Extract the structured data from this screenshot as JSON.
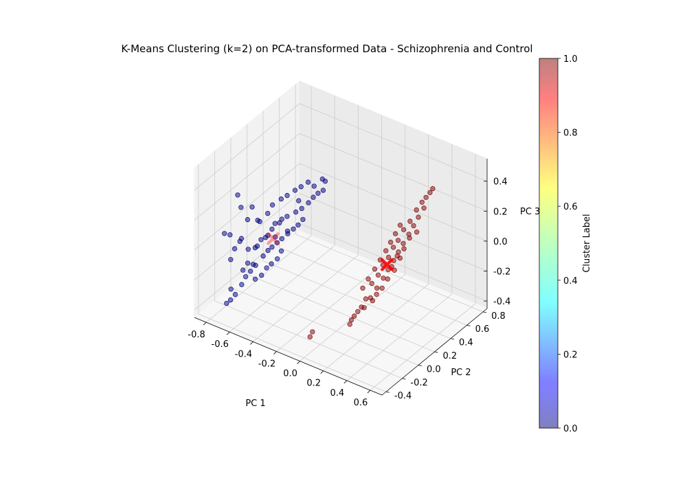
{
  "chart_data": {
    "type": "scatter3d",
    "title": "K-Means Clustering (k=2) on PCA-transformed Data - Schizophrenia and Control",
    "xlabel": "PC 1",
    "ylabel": "PC 2",
    "zlabel": "PC 3",
    "x_ticks": [
      "-0.8",
      "-0.6",
      "-0.4",
      "-0.2",
      "0.0",
      "0.2",
      "0.4",
      "0.6"
    ],
    "y_ticks": [
      "-0.4",
      "-0.2",
      "0.0",
      "0.2",
      "0.4",
      "0.6",
      "0.8"
    ],
    "z_ticks": [
      "-0.4",
      "-0.2",
      "0.0",
      "0.2",
      "0.4"
    ],
    "xlim": [
      -0.9,
      0.7
    ],
    "ylim": [
      -0.45,
      0.85
    ],
    "zlim": [
      -0.45,
      0.55
    ],
    "grid": true,
    "colorbar": {
      "label": "Cluster Label",
      "ticks": [
        "0.0",
        "0.2",
        "0.4",
        "0.6",
        "0.8",
        "1.0"
      ],
      "range": [
        0,
        1
      ],
      "colormap": "jet",
      "alpha": 0.5
    },
    "clusters": [
      {
        "label": 0,
        "color": "#00007f",
        "points": [
          [
            -0.6,
            -0.35,
            0.42
          ],
          [
            -0.62,
            -0.28,
            0.3
          ],
          [
            -0.55,
            -0.3,
            0.25
          ],
          [
            -0.58,
            -0.2,
            0.28
          ],
          [
            -0.7,
            -0.3,
            0.1
          ],
          [
            -0.65,
            -0.25,
            0.05
          ],
          [
            -0.6,
            -0.22,
            0.0
          ],
          [
            -0.55,
            -0.18,
            0.02
          ],
          [
            -0.5,
            -0.15,
            0.08
          ],
          [
            -0.48,
            -0.1,
            0.12
          ],
          [
            -0.45,
            -0.05,
            0.15
          ],
          [
            -0.42,
            0.0,
            0.18
          ],
          [
            -0.38,
            0.05,
            0.2
          ],
          [
            -0.35,
            0.08,
            0.22
          ],
          [
            -0.32,
            0.12,
            0.25
          ],
          [
            -0.3,
            0.15,
            0.28
          ],
          [
            -0.28,
            0.18,
            0.3
          ],
          [
            -0.25,
            0.2,
            0.32
          ],
          [
            -0.55,
            -0.2,
            -0.1
          ],
          [
            -0.52,
            -0.15,
            -0.05
          ],
          [
            -0.5,
            -0.12,
            -0.02
          ],
          [
            -0.48,
            -0.1,
            0.0
          ],
          [
            -0.45,
            -0.08,
            0.03
          ],
          [
            -0.43,
            -0.05,
            0.05
          ],
          [
            -0.4,
            -0.02,
            0.08
          ],
          [
            -0.38,
            0.02,
            0.1
          ],
          [
            -0.36,
            0.05,
            0.12
          ],
          [
            -0.34,
            0.08,
            0.15
          ],
          [
            -0.6,
            -0.3,
            -0.2
          ],
          [
            -0.58,
            -0.28,
            -0.15
          ],
          [
            -0.56,
            -0.25,
            -0.12
          ],
          [
            -0.54,
            -0.22,
            -0.18
          ],
          [
            -0.62,
            -0.35,
            -0.25
          ],
          [
            -0.64,
            -0.38,
            -0.28
          ],
          [
            -0.66,
            -0.4,
            -0.3
          ],
          [
            -0.5,
            -0.2,
            -0.15
          ],
          [
            -0.47,
            -0.18,
            -0.1
          ],
          [
            -0.45,
            -0.15,
            -0.08
          ],
          [
            -0.42,
            -0.12,
            -0.05
          ],
          [
            -0.4,
            -0.1,
            0.0
          ],
          [
            -0.52,
            -0.25,
            0.05
          ],
          [
            -0.49,
            -0.22,
            0.1
          ],
          [
            -0.46,
            -0.18,
            0.12
          ],
          [
            -0.44,
            -0.12,
            0.18
          ],
          [
            -0.41,
            -0.08,
            0.2
          ],
          [
            -0.68,
            -0.32,
            -0.05
          ],
          [
            -0.66,
            -0.3,
            0.02
          ],
          [
            -0.63,
            -0.26,
            0.08
          ],
          [
            -0.57,
            -0.12,
            0.15
          ],
          [
            -0.53,
            -0.08,
            0.2
          ],
          [
            -0.51,
            -0.05,
            0.25
          ],
          [
            -0.47,
            0.0,
            0.28
          ],
          [
            -0.44,
            0.03,
            0.3
          ],
          [
            -0.4,
            0.07,
            0.33
          ],
          [
            -0.37,
            0.1,
            0.35
          ],
          [
            -0.33,
            0.13,
            0.38
          ],
          [
            -0.59,
            -0.24,
            -0.08
          ],
          [
            -0.61,
            -0.27,
            -0.12
          ],
          [
            -0.48,
            -0.06,
            0.05
          ],
          [
            -0.43,
            0.02,
            0.07
          ],
          [
            -0.72,
            -0.34,
            0.12
          ],
          [
            -0.56,
            -0.16,
            0.18
          ],
          [
            -0.39,
            0.1,
            0.25
          ],
          [
            -0.3,
            0.16,
            0.35
          ],
          [
            -0.27,
            0.22,
            0.38
          ],
          [
            -0.26,
            0.24,
            0.36
          ],
          [
            -0.65,
            -0.36,
            -0.22
          ],
          [
            -0.53,
            -0.26,
            -0.06
          ]
        ]
      },
      {
        "label": 1,
        "color": "#7f0000",
        "points": [
          [
            0.32,
            0.62,
            0.2
          ],
          [
            0.3,
            0.58,
            0.15
          ],
          [
            0.28,
            0.55,
            0.1
          ],
          [
            0.26,
            0.52,
            0.05
          ],
          [
            0.24,
            0.48,
            0.0
          ],
          [
            0.22,
            0.45,
            -0.05
          ],
          [
            0.2,
            0.42,
            -0.1
          ],
          [
            0.18,
            0.38,
            -0.15
          ],
          [
            0.16,
            0.35,
            -0.2
          ],
          [
            0.14,
            0.3,
            -0.25
          ],
          [
            0.12,
            0.25,
            -0.3
          ],
          [
            0.1,
            0.2,
            -0.35
          ],
          [
            0.25,
            0.55,
            0.12
          ],
          [
            0.23,
            0.5,
            0.08
          ],
          [
            0.21,
            0.46,
            0.02
          ],
          [
            0.19,
            0.43,
            -0.02
          ],
          [
            0.17,
            0.4,
            -0.08
          ],
          [
            0.15,
            0.36,
            -0.12
          ],
          [
            0.13,
            0.33,
            -0.18
          ],
          [
            0.11,
            0.28,
            -0.22
          ],
          [
            0.27,
            0.6,
            0.18
          ],
          [
            0.29,
            0.64,
            0.22
          ],
          [
            0.31,
            0.66,
            0.25
          ],
          [
            0.33,
            0.68,
            0.28
          ],
          [
            0.2,
            0.5,
            0.1
          ],
          [
            0.18,
            0.47,
            0.05
          ],
          [
            0.16,
            0.44,
            0.0
          ],
          [
            0.14,
            0.41,
            -0.05
          ],
          [
            0.12,
            0.37,
            -0.1
          ],
          [
            0.1,
            0.33,
            -0.15
          ],
          [
            0.08,
            0.28,
            -0.2
          ],
          [
            0.06,
            0.24,
            -0.25
          ],
          [
            0.22,
            0.4,
            -0.15
          ],
          [
            0.24,
            0.44,
            -0.08
          ],
          [
            0.26,
            0.46,
            -0.02
          ],
          [
            0.28,
            0.5,
            0.04
          ],
          [
            0.19,
            0.36,
            -0.2
          ],
          [
            0.17,
            0.32,
            -0.25
          ],
          [
            0.15,
            0.28,
            -0.28
          ],
          [
            0.13,
            0.26,
            -0.32
          ],
          [
            0.06,
            0.1,
            -0.4
          ],
          [
            0.06,
            0.08,
            -0.42
          ],
          [
            0.07,
            0.12,
            -0.38
          ],
          [
            0.08,
            0.15,
            -0.36
          ],
          [
            0.09,
            0.18,
            -0.34
          ],
          [
            0.1,
            0.22,
            -0.3
          ],
          [
            0.3,
            0.56,
            0.06
          ],
          [
            0.21,
            0.38,
            -0.12
          ],
          [
            0.23,
            0.42,
            -0.06
          ],
          [
            0.34,
            0.7,
            0.3
          ],
          [
            -0.1,
            -0.15,
            -0.42
          ],
          [
            -0.1,
            -0.18,
            -0.44
          ]
        ]
      }
    ],
    "centroids": [
      {
        "label": 0,
        "x": -0.47,
        "y": -0.1,
        "z": 0.06,
        "color": "#ff0000"
      },
      {
        "label": 1,
        "x": 0.17,
        "y": 0.38,
        "z": -0.12,
        "color": "#ff0000"
      }
    ]
  }
}
